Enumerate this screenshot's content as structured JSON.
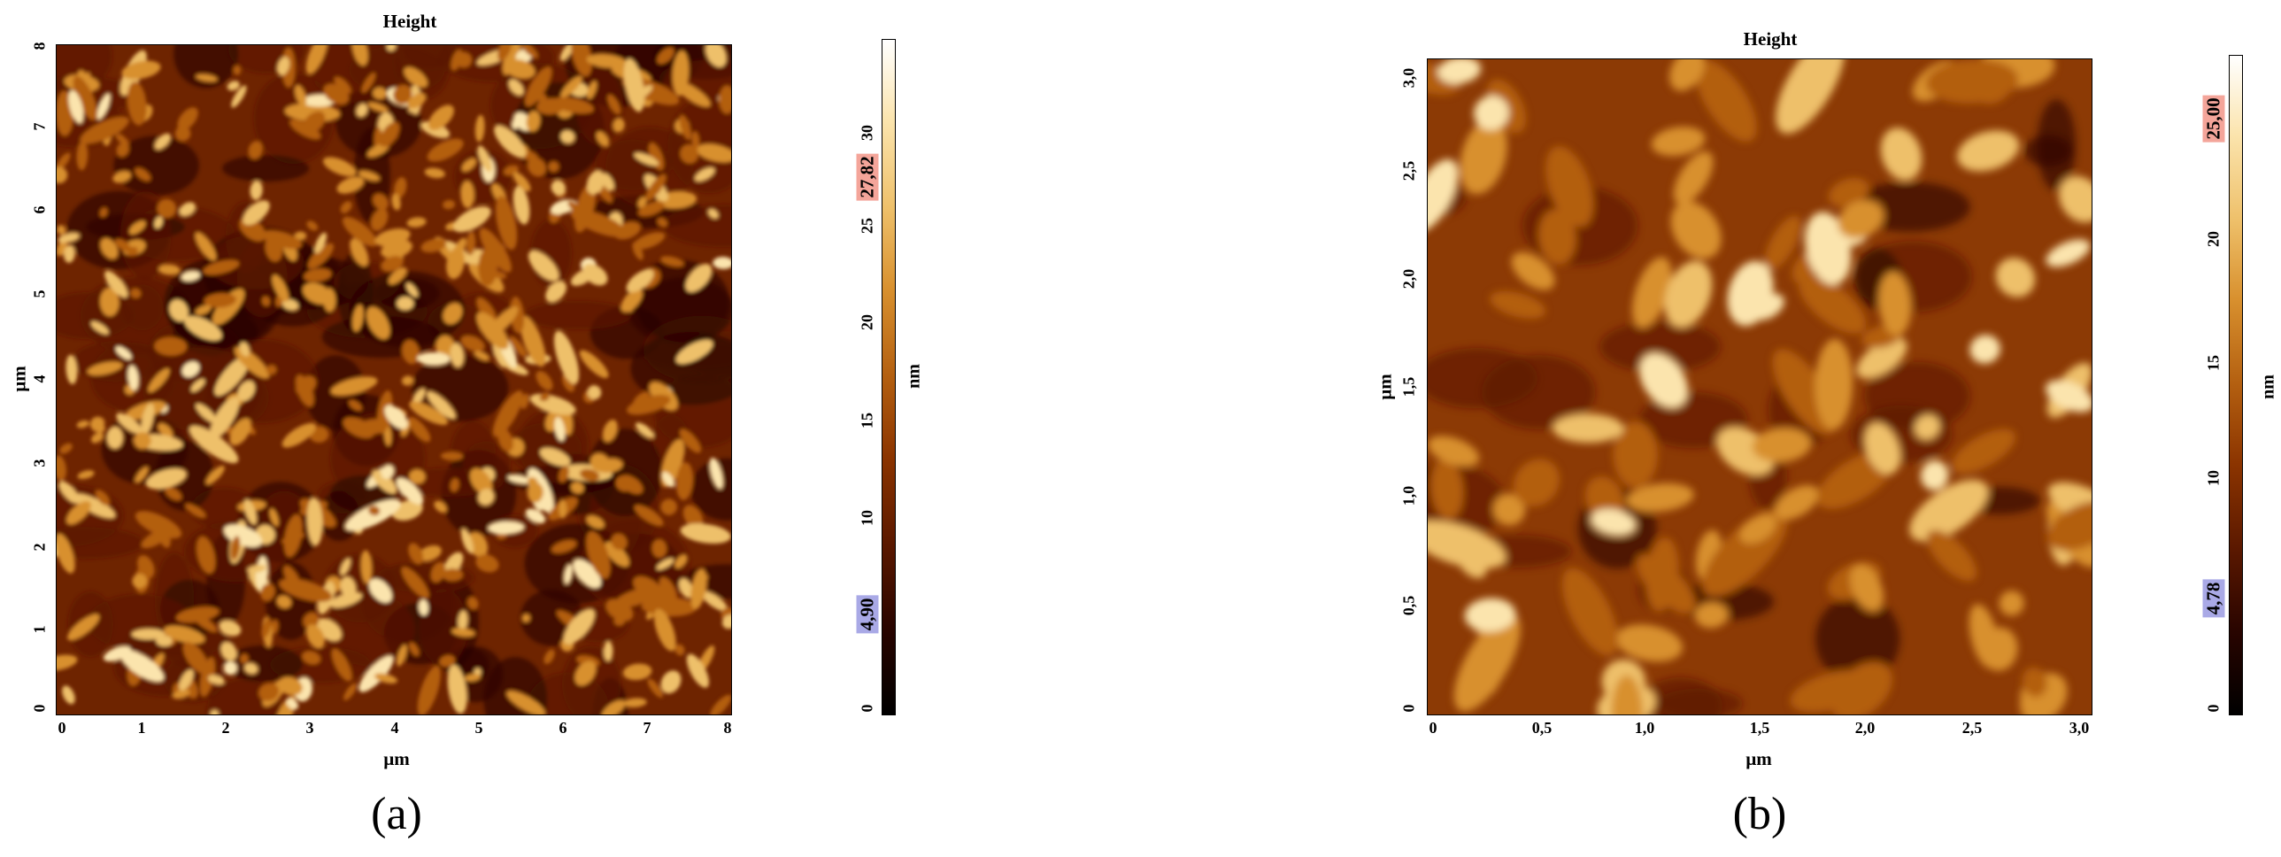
{
  "panels": [
    {
      "id": "a",
      "title": "Height",
      "caption": "(a)",
      "x_unit": "µm",
      "y_unit": "µm",
      "x_ticks": [
        "0",
        "1",
        "2",
        "3",
        "4",
        "5",
        "6",
        "7",
        "8"
      ],
      "y_ticks": [
        "0",
        "1",
        "2",
        "3",
        "4",
        "5",
        "6",
        "7",
        "8"
      ],
      "scale_unit": "nm",
      "scale_ticks": [
        "0",
        "5",
        "10",
        "15",
        "20",
        "25",
        "30"
      ],
      "scale_range_nm": [
        0,
        34
      ],
      "scale_max_label": "27,82",
      "scale_min_label": "4,90",
      "max_badge_color": "#f4a59a",
      "min_badge_color": "#a9a9e6"
    },
    {
      "id": "b",
      "title": "Height",
      "caption": "(b)",
      "x_unit": "µm",
      "y_unit": "µm",
      "x_ticks": [
        "0",
        "0,5",
        "1,0",
        "1,5",
        "2,0",
        "2,5",
        "3,0"
      ],
      "y_ticks": [
        "0",
        "0,5",
        "1,0",
        "1,5",
        "2,0",
        "2,5",
        "3,0"
      ],
      "scale_unit": "nm",
      "scale_ticks": [
        "0",
        "5",
        "10",
        "15",
        "20",
        "25"
      ],
      "scale_range_nm": [
        0,
        27
      ],
      "scale_max_label": "25,00",
      "scale_min_label": "4,78",
      "max_badge_color": "#f4a59a",
      "min_badge_color": "#a9a9e6"
    }
  ],
  "colormap": [
    "#000000",
    "#2a0500",
    "#5a1800",
    "#8b3400",
    "#b35f10",
    "#d8902e",
    "#eec06a",
    "#fbe4ad",
    "#ffffff"
  ]
}
